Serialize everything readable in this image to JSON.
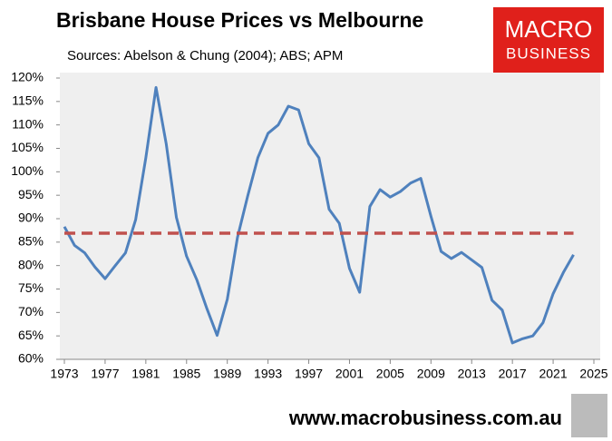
{
  "chart_data": {
    "type": "line",
    "title": "Brisbane House Prices vs Melbourne",
    "subtitle": "Sources: Abelson & Chung (2004); ABS; APM",
    "x": [
      1973,
      1974,
      1975,
      1976,
      1977,
      1978,
      1979,
      1980,
      1981,
      1982,
      1983,
      1984,
      1985,
      1986,
      1987,
      1988,
      1989,
      1990,
      1991,
      1992,
      1993,
      1994,
      1995,
      1996,
      1997,
      1998,
      1999,
      2000,
      2001,
      2002,
      2003,
      2004,
      2005,
      2006,
      2007,
      2008,
      2009,
      2010,
      2011,
      2012,
      2013,
      2014,
      2015,
      2016,
      2017,
      2018,
      2019,
      2020,
      2021,
      2022,
      2023
    ],
    "series": [
      {
        "color": "#4f81bd",
        "values": [
          88.3,
          84.3,
          82.7,
          79.7,
          77.2,
          80,
          82.7,
          89.8,
          103,
          118,
          106,
          90.3,
          82,
          77,
          70.8,
          65.1,
          72.8,
          86,
          94.8,
          103,
          108.2,
          110,
          114,
          113.2,
          106,
          103,
          92,
          89,
          79.4,
          74.3,
          92.6,
          96.2,
          94.6,
          95.8,
          97.6,
          98.6,
          90.5,
          83,
          81.5,
          82.8,
          81.2,
          79.6,
          72.6,
          70.5,
          63.5,
          64.4,
          65,
          67.8,
          74,
          78.5,
          82.3
        ]
      },
      {
        "color": "#c0504d",
        "dashed": true,
        "values": [
          86.9,
          86.9,
          86.9,
          86.9,
          86.9,
          86.9,
          86.9,
          86.9,
          86.9,
          86.9,
          86.9,
          86.9,
          86.9,
          86.9,
          86.9,
          86.9,
          86.9,
          86.9,
          86.9,
          86.9,
          86.9,
          86.9,
          86.9,
          86.9,
          86.9,
          86.9,
          86.9,
          86.9,
          86.9,
          86.9,
          86.9,
          86.9,
          86.9,
          86.9,
          86.9,
          86.9,
          86.9,
          86.9,
          86.9,
          86.9,
          86.9,
          86.9,
          86.9,
          86.9,
          86.9,
          86.9,
          86.9,
          86.9,
          86.9,
          86.9,
          86.9
        ]
      }
    ],
    "xlim": [
      1973,
      2025
    ],
    "xticks": [
      1973,
      1977,
      1981,
      1985,
      1989,
      1993,
      1997,
      2001,
      2005,
      2009,
      2013,
      2017,
      2021,
      2025
    ],
    "ylim": [
      60,
      120
    ],
    "yticks": [
      {
        "value": 60,
        "label": "60%"
      },
      {
        "value": 65,
        "label": "65%"
      },
      {
        "value": 70,
        "label": "70%"
      },
      {
        "value": 75,
        "label": "75%"
      },
      {
        "value": 80,
        "label": "80%"
      },
      {
        "value": 85,
        "label": "85%"
      },
      {
        "value": 90,
        "label": "90%"
      },
      {
        "value": 95,
        "label": "95%"
      },
      {
        "value": 100,
        "label": "100%"
      },
      {
        "value": 105,
        "label": "105%"
      },
      {
        "value": 110,
        "label": "110%"
      },
      {
        "value": 115,
        "label": "115%"
      },
      {
        "value": 120,
        "label": "120%"
      }
    ],
    "grid": false
  },
  "logo": {
    "line1": "MACRO",
    "line2": "BUSINESS"
  },
  "footer": "www.macrobusiness.com.au"
}
